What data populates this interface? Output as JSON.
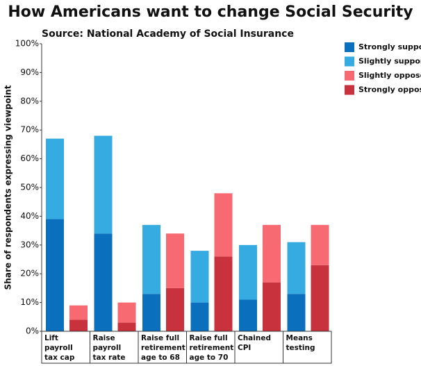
{
  "chart_data": {
    "type": "grouped-stacked-bar",
    "title": "How Americans want to change Social Security",
    "subtitle": "Source: National Academy of Social Insurance",
    "y_label": "Share of respondents expressing viewpoint",
    "categories": [
      "Lift payroll tax cap",
      "Raise payroll tax rate",
      "Raise full retirement age to 68",
      "Raise full retirement age to 70",
      "Chained CPI",
      "Means testing"
    ],
    "series": [
      {
        "name": "Strongly support",
        "color": "#0a6fbd",
        "values": [
          39,
          34,
          13,
          10,
          11,
          13
        ]
      },
      {
        "name": "Slightly support",
        "color": "#36abe2",
        "values": [
          28,
          34,
          24,
          18,
          19,
          18
        ]
      },
      {
        "name": "Slightly oppose",
        "color": "#f76a72",
        "values": [
          5,
          7,
          19,
          22,
          20,
          14
        ]
      },
      {
        "name": "Strongly oppose",
        "color": "#c8323c",
        "values": [
          4,
          3,
          15,
          26,
          17,
          23
        ]
      }
    ],
    "ylim": [
      0,
      100
    ],
    "yticks": [
      {
        "value": 0,
        "label": "0%"
      },
      {
        "value": 10,
        "label": "10%"
      },
      {
        "value": 20,
        "label": "20%"
      },
      {
        "value": 30,
        "label": "30%"
      },
      {
        "value": 40,
        "label": "40%"
      },
      {
        "value": 50,
        "label": "50%"
      },
      {
        "value": 60,
        "label": "60%"
      },
      {
        "value": 70,
        "label": "70%"
      },
      {
        "value": 80,
        "label": "80%"
      },
      {
        "value": 90,
        "label": "90%"
      },
      {
        "value": 100,
        "label": "100%"
      }
    ],
    "grid": false,
    "legend": "right"
  }
}
